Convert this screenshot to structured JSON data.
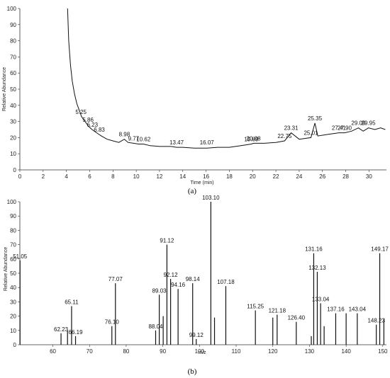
{
  "chart_data": [
    {
      "type": "line",
      "caption": "(a)",
      "xlabel": "Time (min)",
      "ylabel": "Relative Abundance",
      "xlim": [
        0,
        31.5
      ],
      "ylim": [
        0,
        100
      ],
      "xticks": [
        0,
        2,
        4,
        6,
        8,
        10,
        12,
        14,
        16,
        18,
        20,
        22,
        24,
        26,
        28,
        30
      ],
      "yticks": [
        0,
        10,
        20,
        30,
        40,
        50,
        60,
        70,
        80,
        90,
        100
      ],
      "series": [
        {
          "x": [
            4.1,
            4.2,
            4.35,
            4.5,
            4.7,
            4.9,
            5.1,
            5.3,
            5.6,
            5.9,
            6.2,
            6.6,
            7.0,
            7.5,
            8.0,
            8.5,
            8.98,
            9.3,
            9.77,
            10.2,
            10.62,
            11.2,
            12.0,
            13.0,
            13.47,
            14.0,
            15.0,
            16.07,
            17.0,
            18.0,
            19.0,
            19.89,
            20.08,
            21.0,
            22.0,
            22.75,
            23.31,
            24.0,
            25.01,
            25.35,
            25.6,
            26.5,
            27.41,
            27.9,
            28.5,
            29.09,
            29.5,
            29.95,
            30.5,
            31.0,
            31.4
          ],
          "y": [
            100,
            80,
            65,
            55,
            47,
            41,
            37,
            33,
            30,
            27,
            25,
            23,
            21,
            19,
            18,
            17,
            19,
            17,
            16.5,
            16,
            16,
            15,
            14.5,
            14.5,
            14,
            14,
            13.5,
            13.5,
            14,
            14,
            15,
            16,
            16.5,
            16.5,
            17,
            18,
            23,
            19,
            20,
            29,
            21,
            22,
            23,
            23,
            24,
            26,
            24,
            26,
            25,
            26,
            25
          ]
        }
      ],
      "peak_labels": [
        {
          "x": 5.25,
          "y": 33,
          "label": "5.25"
        },
        {
          "x": 5.86,
          "y": 28,
          "label": "5.86"
        },
        {
          "x": 6.23,
          "y": 25,
          "label": "6.23"
        },
        {
          "x": 6.83,
          "y": 22,
          "label": "6.83"
        },
        {
          "x": 8.98,
          "y": 19,
          "label": "8.98"
        },
        {
          "x": 9.77,
          "y": 16.5,
          "label": "9.77"
        },
        {
          "x": 10.62,
          "y": 16,
          "label": "10.62"
        },
        {
          "x": 13.47,
          "y": 14,
          "label": "13.47"
        },
        {
          "x": 16.07,
          "y": 14,
          "label": "16.07"
        },
        {
          "x": 19.89,
          "y": 16,
          "label": "19.89"
        },
        {
          "x": 20.08,
          "y": 16.5,
          "label": "20.08"
        },
        {
          "x": 22.75,
          "y": 18,
          "label": "22.75"
        },
        {
          "x": 23.31,
          "y": 23,
          "label": "23.31"
        },
        {
          "x": 25.01,
          "y": 20,
          "label": "25.01"
        },
        {
          "x": 25.35,
          "y": 29,
          "label": "25.35"
        },
        {
          "x": 27.41,
          "y": 23,
          "label": "27.41"
        },
        {
          "x": 27.9,
          "y": 23,
          "label": "27.90"
        },
        {
          "x": 29.09,
          "y": 26,
          "label": "29.09"
        },
        {
          "x": 29.95,
          "y": 26,
          "label": "29.95"
        }
      ]
    },
    {
      "type": "bar",
      "caption": "(b)",
      "xlabel": "m/z",
      "ylabel": "Relative Abundance",
      "xlim": [
        51,
        151
      ],
      "ylim": [
        0,
        100
      ],
      "xticks": [
        60,
        70,
        80,
        90,
        100,
        110,
        120,
        130,
        140,
        150
      ],
      "yticks": [
        0,
        10,
        20,
        30,
        40,
        50,
        60,
        70,
        80,
        90,
        100
      ],
      "peaks": [
        {
          "x": 51.05,
          "y": 59,
          "label": "51.05"
        },
        {
          "x": 62.23,
          "y": 8,
          "label": "62.23"
        },
        {
          "x": 64.0,
          "y": 10,
          "label": ""
        },
        {
          "x": 65.11,
          "y": 27,
          "label": "65.11"
        },
        {
          "x": 66.19,
          "y": 6,
          "label": "66.19"
        },
        {
          "x": 76.1,
          "y": 13,
          "label": "76.10"
        },
        {
          "x": 77.07,
          "y": 43,
          "label": "77.07"
        },
        {
          "x": 88.04,
          "y": 10,
          "label": "88.04"
        },
        {
          "x": 89.03,
          "y": 35,
          "label": "89.03"
        },
        {
          "x": 90.1,
          "y": 20,
          "label": ""
        },
        {
          "x": 91.12,
          "y": 70,
          "label": "91.12"
        },
        {
          "x": 92.12,
          "y": 46,
          "label": "92.12"
        },
        {
          "x": 94.16,
          "y": 39,
          "label": "94.16"
        },
        {
          "x": 98.14,
          "y": 43,
          "label": "98.14"
        },
        {
          "x": 99.12,
          "y": 4,
          "label": "99.12"
        },
        {
          "x": 103.1,
          "y": 100,
          "label": "103.10"
        },
        {
          "x": 104.1,
          "y": 19,
          "label": ""
        },
        {
          "x": 107.18,
          "y": 41,
          "label": "107.18"
        },
        {
          "x": 115.25,
          "y": 24,
          "label": "115.25"
        },
        {
          "x": 120.0,
          "y": 19,
          "label": ""
        },
        {
          "x": 121.18,
          "y": 21,
          "label": "121.18"
        },
        {
          "x": 126.4,
          "y": 16,
          "label": "126.40"
        },
        {
          "x": 130.5,
          "y": 6,
          "label": ""
        },
        {
          "x": 131.16,
          "y": 64,
          "label": "131.16"
        },
        {
          "x": 132.13,
          "y": 51,
          "label": "132.13"
        },
        {
          "x": 133.04,
          "y": 29,
          "label": "133.04"
        },
        {
          "x": 134.0,
          "y": 13,
          "label": ""
        },
        {
          "x": 137.16,
          "y": 22,
          "label": "137.16"
        },
        {
          "x": 140.0,
          "y": 22,
          "label": ""
        },
        {
          "x": 143.04,
          "y": 22,
          "label": "143.04"
        },
        {
          "x": 148.23,
          "y": 14,
          "label": "148.23"
        },
        {
          "x": 149.17,
          "y": 64,
          "label": "149.17"
        },
        {
          "x": 150.3,
          "y": 18,
          "label": ""
        }
      ]
    }
  ]
}
